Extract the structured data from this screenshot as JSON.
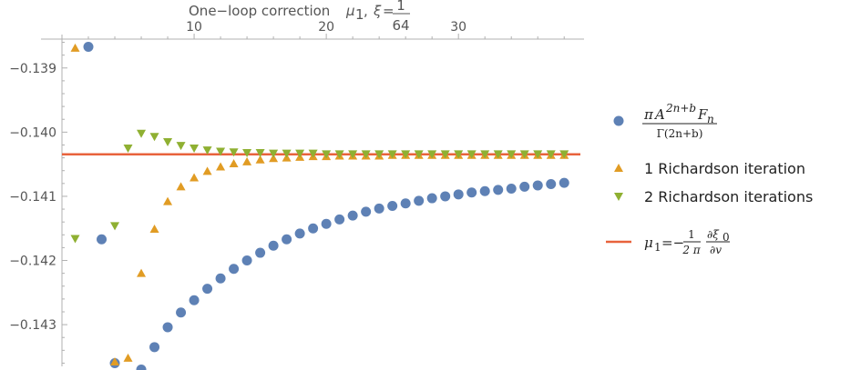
{
  "chart_data": {
    "type": "scatter",
    "title": {
      "prefix": "One−loop correction",
      "mu": "μ",
      "mu_sub": "1",
      "sep": ",",
      "xi": "ξ",
      "eq": "=",
      "frac_num": "1",
      "frac_den": "64"
    },
    "xlabel": "",
    "ylabel": "",
    "xlim": [
      0,
      39.5
    ],
    "ylim": [
      -0.14365,
      -0.13855
    ],
    "x_ticks": [
      10,
      20,
      30
    ],
    "y_ticks": [
      -0.139,
      -0.14,
      -0.141,
      -0.142,
      -0.143
    ],
    "x_tick_labels": [
      "10",
      "20",
      "30"
    ],
    "y_tick_labels": [
      "−0.139",
      "−0.140",
      "−0.141",
      "−0.142",
      "−0.143"
    ],
    "grid": false,
    "legend_position": "right",
    "reference_line": {
      "y": -0.140345,
      "color": "#E8623C"
    },
    "series": [
      {
        "name": "π A^(2n+b) F_n / Γ(2n+b)",
        "marker": "circle",
        "color": "#5E81B5",
        "x": [
          2,
          3,
          4,
          5,
          6,
          7,
          8,
          9,
          10,
          11,
          12,
          13,
          14,
          15,
          16,
          17,
          18,
          19,
          20,
          21,
          22,
          23,
          24,
          25,
          26,
          27,
          28,
          29,
          30,
          31,
          32,
          33,
          34,
          35,
          36,
          37,
          38
        ],
        "y": [
          -0.13867,
          -0.14167,
          -0.1436,
          null,
          -0.1437,
          -0.14335,
          -0.14304,
          -0.14281,
          -0.14262,
          -0.14244,
          -0.14228,
          -0.14213,
          -0.142,
          -0.14188,
          -0.14177,
          -0.14167,
          -0.14158,
          -0.1415,
          -0.14143,
          -0.14136,
          -0.1413,
          -0.14124,
          -0.14119,
          -0.14115,
          -0.14111,
          -0.14107,
          -0.14103,
          -0.141,
          -0.14097,
          -0.14094,
          -0.14092,
          -0.1409,
          -0.14088,
          -0.14085,
          -0.14083,
          -0.14081,
          -0.14079
        ]
      },
      {
        "name": "1 Richardson iteration",
        "marker": "triangle-up",
        "color": "#E19C24",
        "x": [
          1,
          4,
          5,
          6,
          7,
          8,
          9,
          10,
          11,
          12,
          13,
          14,
          15,
          16,
          17,
          18,
          19,
          20,
          21,
          22,
          23,
          24,
          25,
          26,
          27,
          28,
          29,
          30,
          31,
          32,
          33,
          34,
          35,
          36,
          37,
          38
        ],
        "y": [
          -0.13869,
          -0.14358,
          -0.14352,
          -0.1422,
          -0.14151,
          -0.14108,
          -0.14085,
          -0.14071,
          -0.14061,
          -0.14054,
          -0.14049,
          -0.14046,
          -0.14043,
          -0.14041,
          -0.1404,
          -0.14039,
          -0.14038,
          -0.14038,
          -0.14037,
          -0.14037,
          -0.14037,
          -0.14037,
          -0.14036,
          -0.14036,
          -0.14036,
          -0.14036,
          -0.14036,
          -0.14036,
          -0.14036,
          -0.14036,
          -0.14036,
          -0.14036,
          -0.14036,
          -0.14036,
          -0.14036,
          -0.14036
        ]
      },
      {
        "name": "2 Richardson iterations",
        "marker": "triangle-down",
        "color": "#8FB032",
        "x": [
          1,
          4,
          5,
          6,
          7,
          8,
          9,
          10,
          11,
          12,
          13,
          14,
          15,
          16,
          17,
          18,
          19,
          20,
          21,
          22,
          23,
          24,
          25,
          26,
          27,
          28,
          29,
          30,
          31,
          32,
          33,
          34,
          35,
          36,
          37,
          38
        ],
        "y": [
          -0.14166,
          -0.14146,
          -0.14025,
          -0.14002,
          -0.14007,
          -0.14015,
          -0.14021,
          -0.14025,
          -0.14028,
          -0.1403,
          -0.14031,
          -0.14032,
          -0.14032,
          -0.14033,
          -0.14033,
          -0.14033,
          -0.14033,
          -0.14034,
          -0.14034,
          -0.14034,
          -0.14034,
          -0.14034,
          -0.14034,
          -0.14034,
          -0.14034,
          -0.14034,
          -0.14034,
          -0.14034,
          -0.14034,
          -0.14034,
          -0.14034,
          -0.14034,
          -0.14034,
          -0.14034,
          -0.14034,
          -0.14034
        ]
      }
    ],
    "legend": {
      "s1": {
        "num_pi": "π",
        "num_A": "A",
        "num_exp": "2n+b",
        "num_F": "F",
        "num_sub": "n",
        "den": "Γ(2n+b)"
      },
      "s2": "1 Richardson iteration",
      "s3": "2 Richardson iterations",
      "line": {
        "mu": "μ",
        "mu_sub": "1",
        "eq": "=−",
        "f1_num": "1",
        "f1_den": "2 π",
        "f2_num": "∂ξ",
        "f2_num_sub": "0",
        "f2_den": "∂v"
      }
    }
  }
}
